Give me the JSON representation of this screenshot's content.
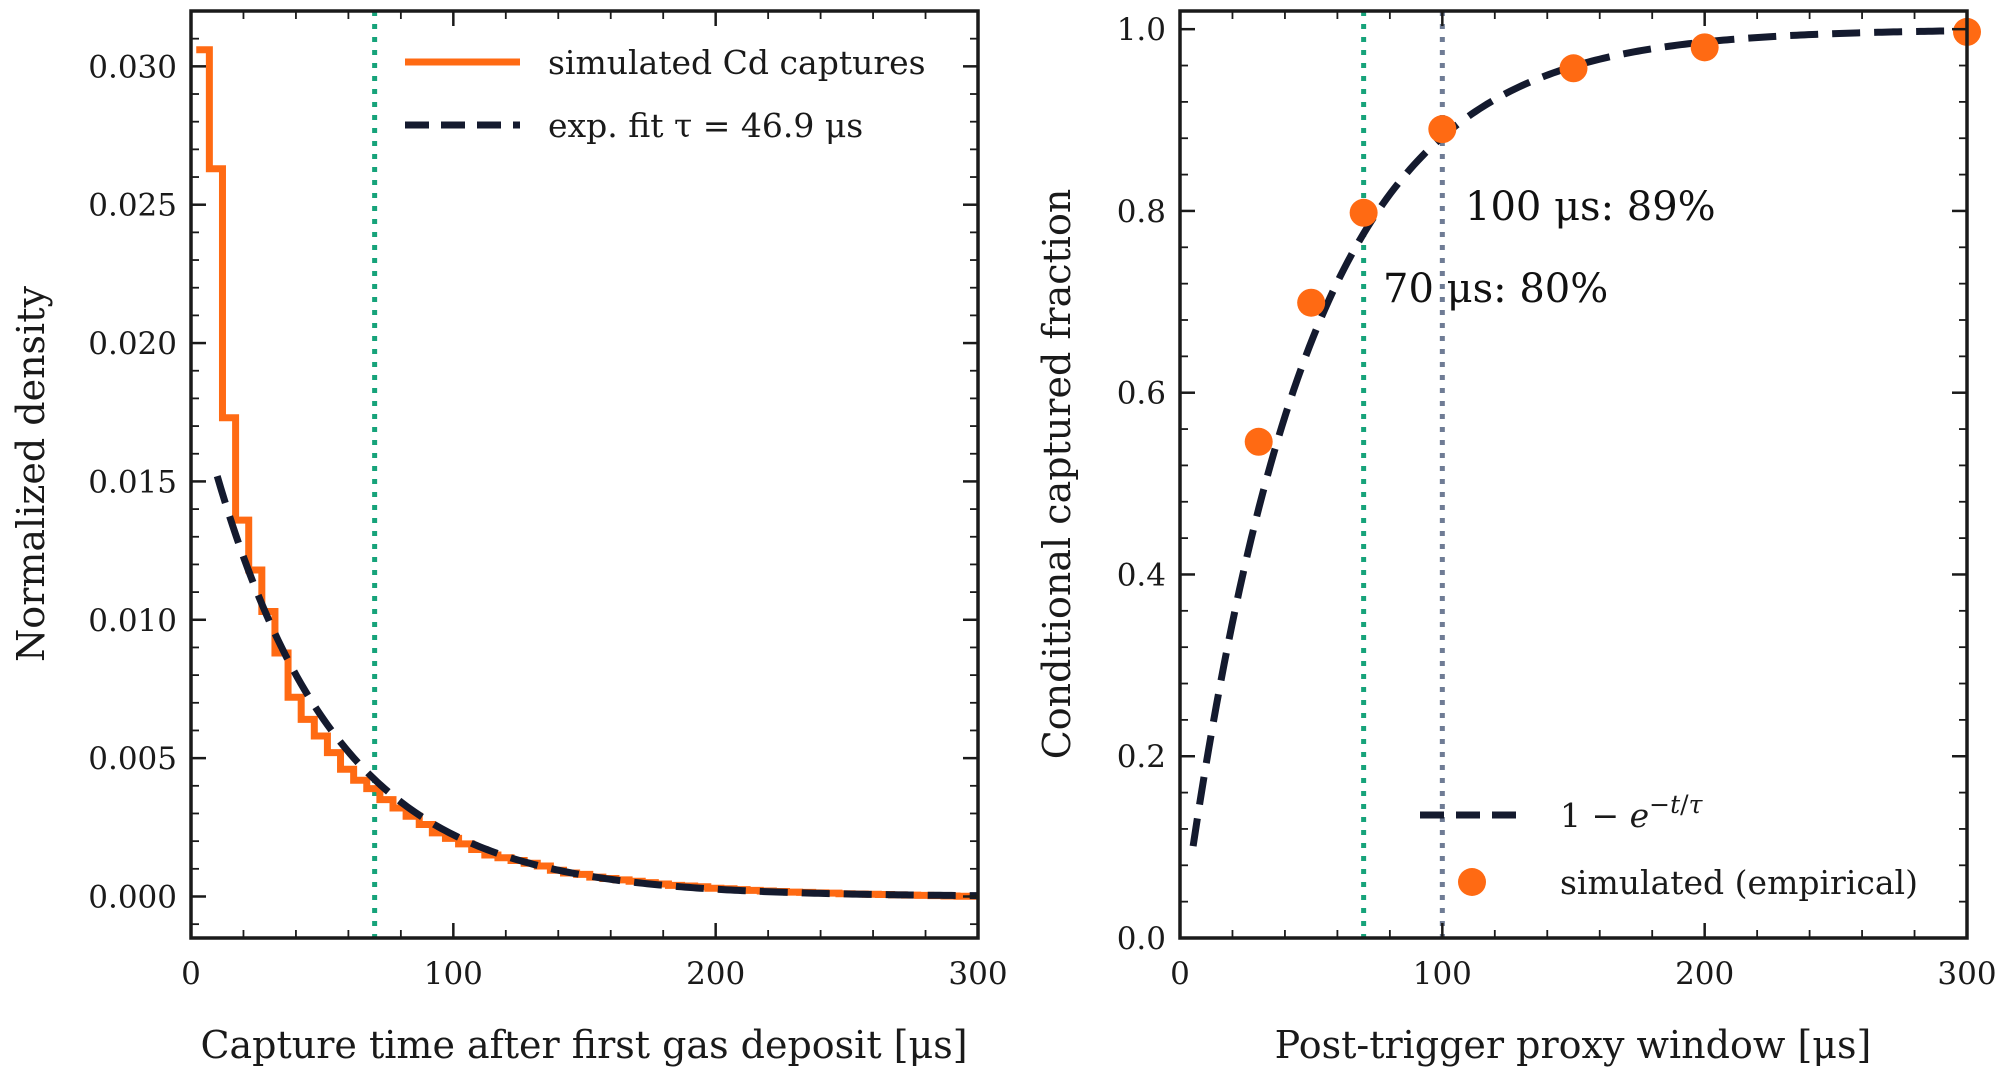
{
  "colors": {
    "sim": "#ff6a13",
    "fit": "#141a2e",
    "vline_green": "#16a37a",
    "vline_gray": "#6f7c95",
    "axis": "#1a1a1a"
  },
  "chart_data": [
    {
      "type": "line",
      "xlabel": "Capture time after first gas deposit [μs]",
      "ylabel": "Normalized density",
      "xlim": [
        0,
        300
      ],
      "ylim": [
        -0.0015,
        0.032
      ],
      "xticks": [
        0,
        100,
        200,
        300
      ],
      "xtick_labels": [
        "0",
        "100",
        "200",
        "300"
      ],
      "yticks": [
        0,
        0.005,
        0.01,
        0.015,
        0.02,
        0.025,
        0.03
      ],
      "ytick_labels": [
        "0.000",
        "0.005",
        "0.010",
        "0.015",
        "0.020",
        "0.025",
        "0.030"
      ],
      "grid": false,
      "legend_position": "top-right",
      "series": [
        {
          "name": "simulated Cd captures",
          "kind": "step-histogram",
          "bin_width": 5,
          "bin_edges_start": 2,
          "values": [
            0.0306,
            0.0263,
            0.0173,
            0.0136,
            0.0118,
            0.0103,
            0.0088,
            0.0072,
            0.0064,
            0.0058,
            0.0052,
            0.0046,
            0.0042,
            0.0039,
            0.0035,
            0.0032,
            0.0029,
            0.0026,
            0.0023,
            0.0021,
            0.0019,
            0.0017,
            0.0015,
            0.0014,
            0.0013,
            0.0012,
            0.0011,
            0.00095,
            0.00085,
            0.0008,
            0.0007,
            0.00065,
            0.0006,
            0.00055,
            0.0005,
            0.00045,
            0.0004,
            0.00038,
            0.00035,
            0.0003,
            0.00028,
            0.00025,
            0.00022,
            0.0002,
            0.00018,
            0.00016,
            0.00015,
            0.00013,
            0.00012,
            0.0001,
            9e-05,
            8e-05,
            7e-05,
            6e-05,
            5e-05,
            4e-05,
            3e-05,
            2e-05,
            1e-05,
            1e-05
          ]
        },
        {
          "name": "exp. fit τ = 46.9 μs",
          "kind": "dashed-line",
          "tau": 46.9,
          "amplitude": 0.0188,
          "x_start": 10,
          "x_end": 300
        }
      ],
      "vlines": [
        {
          "x": 70,
          "color": "vline_green",
          "style": "dotted"
        }
      ]
    },
    {
      "type": "line",
      "xlabel": "Post-trigger proxy window [μs]",
      "ylabel": "Conditional captured fraction",
      "xlim": [
        0,
        300
      ],
      "ylim": [
        0,
        1.02
      ],
      "xticks": [
        0,
        100,
        200,
        300
      ],
      "xtick_labels": [
        "0",
        "100",
        "200",
        "300"
      ],
      "yticks": [
        0,
        0.2,
        0.4,
        0.6,
        0.8,
        1.0
      ],
      "ytick_labels": [
        "0.0",
        "0.2",
        "0.4",
        "0.6",
        "0.8",
        "1.0"
      ],
      "grid": false,
      "legend_position": "bottom-right",
      "series": [
        {
          "name": "1 − e^{−t/τ}",
          "kind": "dashed-line",
          "tau": 46.9,
          "x_start": 5,
          "x_end": 300
        },
        {
          "name": "simulated (empirical)",
          "kind": "scatter",
          "x": [
            30,
            50,
            70,
            100,
            150,
            200,
            300
          ],
          "y": [
            0.546,
            0.699,
            0.798,
            0.89,
            0.957,
            0.98,
            0.997
          ]
        }
      ],
      "vlines": [
        {
          "x": 70,
          "color": "vline_green",
          "style": "dotted"
        },
        {
          "x": 100,
          "color": "vline_gray",
          "style": "dotted"
        }
      ],
      "annotations": [
        {
          "text": "100 μs: 89%",
          "x": 107,
          "y": 0.79
        },
        {
          "text": "70 μs: 80%",
          "x": 76,
          "y": 0.7
        }
      ]
    }
  ]
}
